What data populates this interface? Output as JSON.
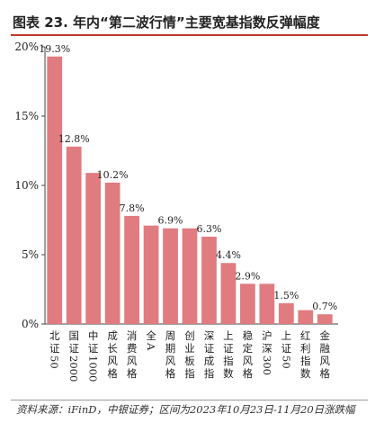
{
  "header": {
    "title": "图表 23. 年内“第二波行情”主要宽基指数反弹幅度"
  },
  "chart_data": {
    "type": "bar",
    "title": "",
    "xlabel": "",
    "ylabel": "",
    "ylim": [
      0,
      20
    ],
    "yticks": [
      "0%",
      "5%",
      "10%",
      "15%",
      "20%"
    ],
    "bar_color": "#e07b80",
    "categories": [
      "北证50",
      "国证2000",
      "中证1000",
      "成长风格",
      "消费风格",
      "全A",
      "周期风格",
      "创业板指",
      "深证成指",
      "上证指数",
      "稳定风格",
      "沪深300",
      "上证50",
      "红利指数",
      "金融风格"
    ],
    "values": [
      19.3,
      12.8,
      10.9,
      10.2,
      7.8,
      7.1,
      6.9,
      6.9,
      6.3,
      4.4,
      2.9,
      2.9,
      1.5,
      1.0,
      0.7
    ],
    "data_labels": [
      "19.3%",
      "12.8%",
      "",
      "10.2%",
      "7.8%",
      "",
      "6.9%",
      "",
      "6.3%",
      "4.4%",
      "2.9%",
      "",
      "1.5%",
      "",
      "0.7%"
    ]
  },
  "footer": {
    "source": "资料来源：iFinD，中银证券；区间为2023年10月23日-11月20日涨跌幅"
  }
}
